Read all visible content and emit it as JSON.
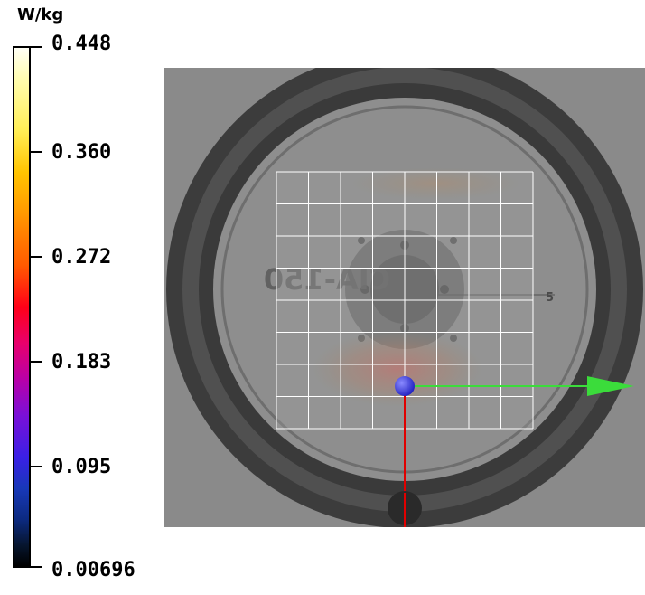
{
  "colorbar": {
    "unit": "W/kg",
    "ticks": [
      "0.448",
      "0.360",
      "0.272",
      "0.183",
      "0.095",
      "0.00696"
    ]
  },
  "phantom": {
    "engraving": "CIA-150",
    "ruler_mark": "5"
  },
  "colors": {
    "x_axis": "#3bdc3b",
    "y_axis": "#e00000",
    "origin": "#3a3aff",
    "grid": "#ffffff",
    "background": "#8a8a8a"
  }
}
